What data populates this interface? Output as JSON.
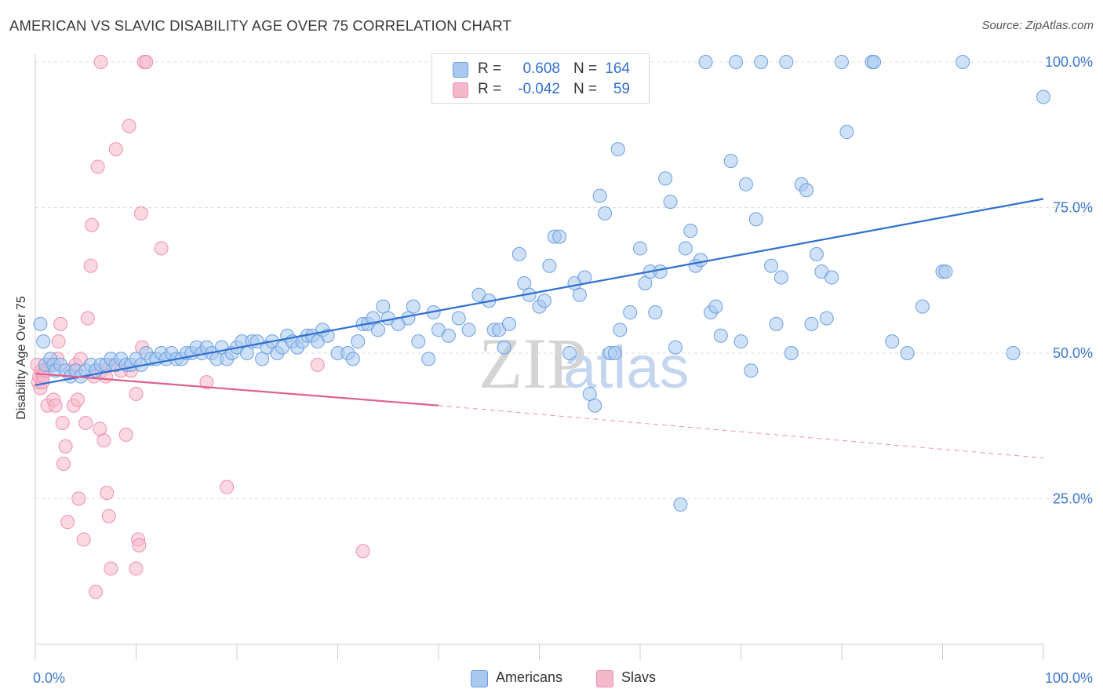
{
  "header": {
    "title": "AMERICAN VS SLAVIC DISABILITY AGE OVER 75 CORRELATION CHART",
    "source": "Source: ZipAtlas.com"
  },
  "legend_top": {
    "rows": [
      {
        "series": "Americans",
        "r_label": "R =",
        "r_value": "0.608",
        "n_label": "N =",
        "n_value": "164"
      },
      {
        "series": "Slavs",
        "r_label": "R =",
        "r_value": "-0.042",
        "n_label": "N =",
        "n_value": "59"
      }
    ]
  },
  "legend_bottom": {
    "items": [
      "Americans",
      "Slavs"
    ]
  },
  "watermark": {
    "zip": "ZIP",
    "atlas": "atlas"
  },
  "colors": {
    "americans_fill": "#a8c8f0",
    "americans_stroke": "#6b9fe0",
    "americans_line": "#2f6fd0",
    "slavs_fill": "#f5b8cb",
    "slavs_stroke": "#ee8fae",
    "slavs_line": "#e06090",
    "grid": "#dddddd",
    "tick_text": "#3c78d0"
  },
  "chart_data": {
    "type": "scatter",
    "title": "AMERICAN VS SLAVIC DISABILITY AGE OVER 75 CORRELATION CHART",
    "xlabel": "",
    "ylabel": "Disability Age Over 75",
    "xlim": [
      0,
      100
    ],
    "ylim": [
      0,
      105
    ],
    "x_tick_labels": [
      "0.0%",
      "100.0%"
    ],
    "y_ticks": [
      25,
      50,
      75,
      100
    ],
    "y_tick_labels": [
      "25.0%",
      "50.0%",
      "75.0%",
      "100.0%"
    ],
    "grid": true,
    "legend_position": "bottom-center",
    "series": [
      {
        "name": "Americans",
        "R": 0.608,
        "N": 164,
        "trend": {
          "x": [
            0,
            100
          ],
          "y": [
            44.5,
            76.5
          ],
          "style": "solid"
        },
        "points": [
          [
            0.5,
            55
          ],
          [
            0.8,
            52
          ],
          [
            1,
            48
          ],
          [
            1.5,
            49
          ],
          [
            1.8,
            48
          ],
          [
            2,
            47
          ],
          [
            2.5,
            48
          ],
          [
            3,
            47
          ],
          [
            3.5,
            46
          ],
          [
            4,
            47
          ],
          [
            4.5,
            46
          ],
          [
            5,
            47
          ],
          [
            5.5,
            48
          ],
          [
            6,
            47
          ],
          [
            6.5,
            48
          ],
          [
            7,
            48
          ],
          [
            7.5,
            49
          ],
          [
            8,
            48
          ],
          [
            8.5,
            49
          ],
          [
            9,
            48
          ],
          [
            9.5,
            48
          ],
          [
            10,
            49
          ],
          [
            10.5,
            48
          ],
          [
            11,
            50
          ],
          [
            11.5,
            49
          ],
          [
            12,
            49
          ],
          [
            12.5,
            50
          ],
          [
            13,
            49
          ],
          [
            13.5,
            50
          ],
          [
            14,
            49
          ],
          [
            14.5,
            49
          ],
          [
            15,
            50
          ],
          [
            15.5,
            50
          ],
          [
            16,
            51
          ],
          [
            16.5,
            50
          ],
          [
            17,
            51
          ],
          [
            17.5,
            50
          ],
          [
            18,
            49
          ],
          [
            18.5,
            51
          ],
          [
            19,
            49
          ],
          [
            19.5,
            50
          ],
          [
            20,
            51
          ],
          [
            20.5,
            52
          ],
          [
            21,
            50
          ],
          [
            21.5,
            52
          ],
          [
            22,
            52
          ],
          [
            22.5,
            49
          ],
          [
            23,
            51
          ],
          [
            23.5,
            52
          ],
          [
            24,
            50
          ],
          [
            24.5,
            51
          ],
          [
            25,
            53
          ],
          [
            25.5,
            52
          ],
          [
            26,
            51
          ],
          [
            26.5,
            52
          ],
          [
            27,
            53
          ],
          [
            27.5,
            53
          ],
          [
            28,
            52
          ],
          [
            28.5,
            54
          ],
          [
            29,
            53
          ],
          [
            30,
            50
          ],
          [
            31,
            50
          ],
          [
            31.5,
            49
          ],
          [
            32,
            52
          ],
          [
            32.5,
            55
          ],
          [
            33,
            55
          ],
          [
            33.5,
            56
          ],
          [
            34,
            54
          ],
          [
            34.5,
            58
          ],
          [
            35,
            56
          ],
          [
            36,
            55
          ],
          [
            37,
            56
          ],
          [
            37.5,
            58
          ],
          [
            38,
            52
          ],
          [
            39,
            49
          ],
          [
            39.5,
            57
          ],
          [
            40,
            54
          ],
          [
            41,
            53
          ],
          [
            42,
            56
          ],
          [
            43,
            54
          ],
          [
            44,
            60
          ],
          [
            45,
            59
          ],
          [
            45.5,
            54
          ],
          [
            46,
            54
          ],
          [
            46.5,
            51
          ],
          [
            47,
            55
          ],
          [
            48,
            67
          ],
          [
            48.5,
            62
          ],
          [
            49,
            60
          ],
          [
            50,
            58
          ],
          [
            50.5,
            59
          ],
          [
            51,
            65
          ],
          [
            51.5,
            70
          ],
          [
            52,
            70
          ],
          [
            53,
            50
          ],
          [
            53.5,
            62
          ],
          [
            54,
            60
          ],
          [
            54.5,
            63
          ],
          [
            55,
            43
          ],
          [
            55.5,
            41
          ],
          [
            56,
            77
          ],
          [
            56.5,
            74
          ],
          [
            57,
            50
          ],
          [
            57.5,
            50
          ],
          [
            57.8,
            85
          ],
          [
            58,
            54
          ],
          [
            59,
            57
          ],
          [
            60,
            68
          ],
          [
            60.5,
            62
          ],
          [
            61,
            64
          ],
          [
            61.5,
            57
          ],
          [
            62,
            64
          ],
          [
            62.5,
            80
          ],
          [
            63,
            76
          ],
          [
            63.5,
            51
          ],
          [
            64,
            24
          ],
          [
            64.5,
            68
          ],
          [
            65,
            71
          ],
          [
            65.5,
            65
          ],
          [
            66,
            66
          ],
          [
            66.5,
            100
          ],
          [
            67,
            57
          ],
          [
            67.5,
            58
          ],
          [
            68,
            53
          ],
          [
            69,
            83
          ],
          [
            69.5,
            100
          ],
          [
            70,
            52
          ],
          [
            70.5,
            79
          ],
          [
            71,
            47
          ],
          [
            71.5,
            73
          ],
          [
            72,
            100
          ],
          [
            73,
            65
          ],
          [
            73.5,
            55
          ],
          [
            74,
            63
          ],
          [
            74.5,
            100
          ],
          [
            75,
            50
          ],
          [
            76,
            79
          ],
          [
            76.5,
            78
          ],
          [
            77,
            55
          ],
          [
            77.5,
            67
          ],
          [
            78,
            64
          ],
          [
            78.5,
            56
          ],
          [
            79,
            63
          ],
          [
            80,
            100
          ],
          [
            80.5,
            88
          ],
          [
            83,
            100
          ],
          [
            83.2,
            100
          ],
          [
            85,
            52
          ],
          [
            86.5,
            50
          ],
          [
            88,
            58
          ],
          [
            90,
            64
          ],
          [
            90.3,
            64
          ],
          [
            92,
            100
          ],
          [
            97,
            50
          ],
          [
            100,
            94
          ]
        ]
      },
      {
        "name": "Slavs",
        "R": -0.042,
        "N": 59,
        "trend": {
          "x": [
            0,
            40
          ],
          "y": [
            46.5,
            41.0
          ],
          "style": "solid",
          "extension": {
            "x": [
              40,
              100
            ],
            "y": [
              41.0,
              32.0
            ],
            "style": "dashed"
          }
        },
        "points": [
          [
            0.2,
            48
          ],
          [
            0.3,
            45
          ],
          [
            0.4,
            46
          ],
          [
            0.5,
            44
          ],
          [
            0.6,
            47
          ],
          [
            0.7,
            45
          ],
          [
            0.8,
            46
          ],
          [
            1,
            47
          ],
          [
            1.2,
            41
          ],
          [
            1.5,
            48
          ],
          [
            1.8,
            42
          ],
          [
            2,
            41
          ],
          [
            2.2,
            49
          ],
          [
            2.3,
            52
          ],
          [
            2.5,
            55
          ],
          [
            2.7,
            38
          ],
          [
            2.8,
            31
          ],
          [
            3,
            34
          ],
          [
            3.2,
            21
          ],
          [
            3.5,
            47
          ],
          [
            3.8,
            41
          ],
          [
            4,
            48
          ],
          [
            4.2,
            42
          ],
          [
            4.3,
            25
          ],
          [
            4.5,
            49
          ],
          [
            4.8,
            18
          ],
          [
            5,
            38
          ],
          [
            5.2,
            56
          ],
          [
            5.5,
            65
          ],
          [
            5.6,
            72
          ],
          [
            5.8,
            46
          ],
          [
            6,
            9
          ],
          [
            6.2,
            82
          ],
          [
            6.4,
            37
          ],
          [
            6.5,
            100
          ],
          [
            6.6,
            47
          ],
          [
            6.8,
            35
          ],
          [
            7,
            46
          ],
          [
            7.1,
            26
          ],
          [
            7.3,
            22
          ],
          [
            7.5,
            13
          ],
          [
            7.7,
            48
          ],
          [
            8,
            85
          ],
          [
            8.5,
            47
          ],
          [
            9,
            36
          ],
          [
            9.3,
            89
          ],
          [
            9.5,
            47
          ],
          [
            10,
            13
          ],
          [
            10,
            43
          ],
          [
            10.2,
            18
          ],
          [
            10.3,
            17
          ],
          [
            10.5,
            74
          ],
          [
            10.6,
            51
          ],
          [
            10.8,
            100
          ],
          [
            11,
            100
          ],
          [
            12.5,
            68
          ],
          [
            17,
            45
          ],
          [
            19,
            27
          ],
          [
            28,
            48
          ],
          [
            32.5,
            16
          ]
        ]
      }
    ]
  }
}
